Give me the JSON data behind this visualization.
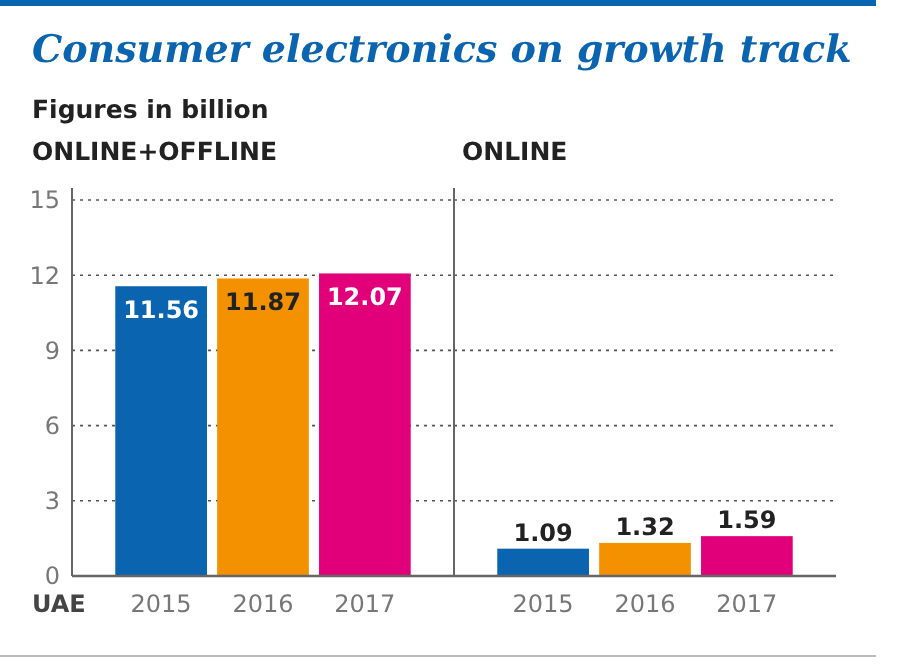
{
  "chart_data": [
    {
      "type": "bar",
      "title": "Consumer electronics on growth track",
      "subtitle": "Figures in billion",
      "annotations": [
        "ONLINE+OFFLINE",
        "UAE"
      ],
      "categories": [
        "2015",
        "2016",
        "2017"
      ],
      "values": [
        11.56,
        11.87,
        12.07
      ],
      "colors": [
        "#0a64b0",
        "#f39100",
        "#e2007a"
      ],
      "ylim": [
        0,
        15
      ],
      "yticks": [
        0,
        3,
        6,
        9,
        12,
        15
      ],
      "grid": "y",
      "data_labels": true
    },
    {
      "type": "bar",
      "title": "ONLINE",
      "categories": [
        "2015",
        "2016",
        "2017"
      ],
      "values": [
        1.09,
        1.32,
        1.59
      ],
      "colors": [
        "#0a64b0",
        "#f39100",
        "#e2007a"
      ],
      "ylim": [
        0,
        15
      ],
      "yticks": [
        0,
        3,
        6,
        9,
        12,
        15
      ],
      "grid": "y",
      "data_labels": true,
      "tick_labels": "x"
    }
  ]
}
